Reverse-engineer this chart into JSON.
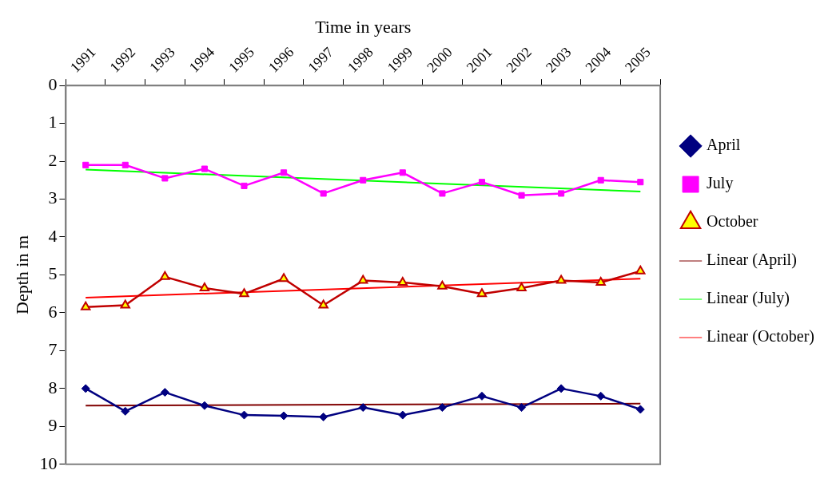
{
  "chart_data": {
    "type": "line",
    "xlabel": "Time in years",
    "ylabel": "Depth in m",
    "categories": [
      "1991",
      "1992",
      "1993",
      "1994",
      "1995",
      "1996",
      "1997",
      "1998",
      "1999",
      "2000",
      "2001",
      "2002",
      "2003",
      "2004",
      "2005"
    ],
    "ylim": [
      10,
      0
    ],
    "yticks": [
      0,
      1,
      2,
      3,
      4,
      5,
      6,
      7,
      8,
      9,
      10
    ],
    "grid": false,
    "legend": "right",
    "series": [
      {
        "name": "April",
        "color": "#000080",
        "marker": "diamond",
        "values": [
          8.0,
          8.6,
          8.1,
          8.45,
          8.7,
          8.72,
          8.75,
          8.5,
          8.7,
          8.5,
          8.2,
          8.5,
          8.0,
          8.2,
          8.55
        ]
      },
      {
        "name": "July",
        "color": "#ff00ff",
        "marker": "square",
        "values": [
          2.1,
          2.1,
          2.45,
          2.2,
          2.65,
          2.3,
          2.85,
          2.5,
          2.3,
          2.85,
          2.55,
          2.9,
          2.85,
          2.5,
          2.55
        ]
      },
      {
        "name": "October",
        "color": "#c00000",
        "marker": "triangle",
        "values": [
          5.85,
          5.8,
          5.05,
          5.35,
          5.5,
          5.1,
          5.8,
          5.15,
          5.2,
          5.3,
          5.5,
          5.35,
          5.15,
          5.2,
          4.9
        ]
      },
      {
        "name": "Linear (April)",
        "color": "#800000",
        "marker": "none",
        "values": [
          8.45,
          null,
          null,
          null,
          null,
          null,
          null,
          null,
          null,
          null,
          null,
          null,
          null,
          null,
          8.4
        ]
      },
      {
        "name": "Linear (July)",
        "color": "#00ff00",
        "marker": "none",
        "values": [
          2.22,
          null,
          null,
          null,
          null,
          null,
          null,
          null,
          null,
          null,
          null,
          null,
          null,
          null,
          2.8
        ]
      },
      {
        "name": "Linear (October)",
        "color": "#ff0000",
        "marker": "none",
        "values": [
          5.6,
          null,
          null,
          null,
          null,
          null,
          null,
          null,
          null,
          null,
          null,
          null,
          null,
          null,
          5.1
        ]
      }
    ]
  }
}
